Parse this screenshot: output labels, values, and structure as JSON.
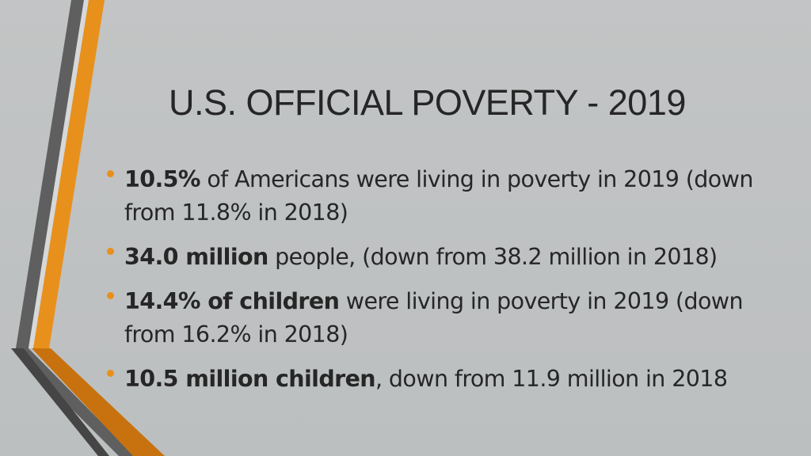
{
  "slide": {
    "title": "U.S. OFFICIAL POVERTY - 2019",
    "accent_color": "#e8901c",
    "stripe_color": "#5f5f5f",
    "bullets": [
      {
        "bold": "10.5%",
        "rest": " of Americans were living in poverty in 2019 (down from 11.8% in 2018)"
      },
      {
        "bold": "34.0 million",
        "rest": " people, (down from 38.2 million in 2018)"
      },
      {
        "bold": "14.4% of children",
        "rest": " were living in poverty in 2019 (down from 16.2% in 2018)"
      },
      {
        "bold": "10.5 million children",
        "rest": ", down from 11.9 million in 2018"
      }
    ]
  }
}
